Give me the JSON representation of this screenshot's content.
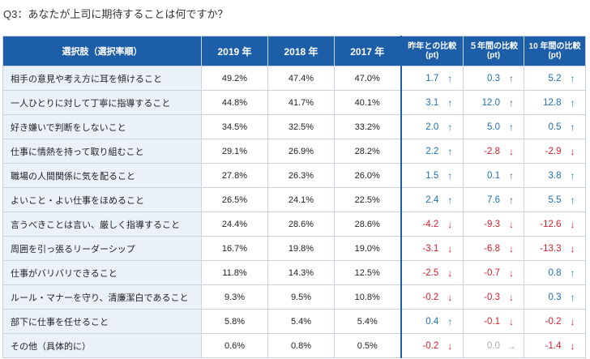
{
  "title": "Q3：あなたが上司に期待することは何ですか？",
  "colors": {
    "header_bg": "#1d5ea8",
    "label_bg": "#eaf1f9",
    "up": "#1e6fb8",
    "down": "#d4202c",
    "flat": "#aaaaaa"
  },
  "headers": {
    "option": "選択肢（選択率順）",
    "y2019": "2019 年",
    "y2018": "2018 年",
    "y2017": "2017 年",
    "cmp_prev": "昨年との比較",
    "cmp_5y": "５年間の比較",
    "cmp_10y": "10 年間の比較",
    "unit": "(pt)"
  },
  "rows": [
    {
      "label": "相手の意見や考え方に耳を傾けること",
      "y2019": "49.2%",
      "y2018": "47.4%",
      "y2017": "47.0%",
      "prev": {
        "v": "1.7",
        "dir": "up",
        "arrow": "↑"
      },
      "five": {
        "v": "0.3",
        "dir": "up",
        "arrow": "↑"
      },
      "ten": {
        "v": "5.2",
        "dir": "up",
        "arrow": "↑"
      }
    },
    {
      "label": "一人ひとりに対して丁寧に指導すること",
      "y2019": "44.8%",
      "y2018": "41.7%",
      "y2017": "40.1%",
      "prev": {
        "v": "3.1",
        "dir": "up",
        "arrow": "↑"
      },
      "five": {
        "v": "12.0",
        "dir": "up",
        "arrow": "↑"
      },
      "ten": {
        "v": "12.8",
        "dir": "up",
        "arrow": "↑"
      }
    },
    {
      "label": "好き嫌いで判断をしないこと",
      "y2019": "34.5%",
      "y2018": "32.5%",
      "y2017": "33.2%",
      "prev": {
        "v": "2.0",
        "dir": "up",
        "arrow": "↑"
      },
      "five": {
        "v": "5.0",
        "dir": "up",
        "arrow": "↑"
      },
      "ten": {
        "v": "0.5",
        "dir": "up",
        "arrow": "↑"
      }
    },
    {
      "label": "仕事に情熱を持って取り組むこと",
      "y2019": "29.1%",
      "y2018": "26.9%",
      "y2017": "28.2%",
      "prev": {
        "v": "2.2",
        "dir": "up",
        "arrow": "↑"
      },
      "five": {
        "v": "-2.8",
        "dir": "down",
        "arrow": "↓"
      },
      "ten": {
        "v": "-2.9",
        "dir": "down",
        "arrow": "↓"
      }
    },
    {
      "label": "職場の人間関係に気を配ること",
      "y2019": "27.8%",
      "y2018": "26.3%",
      "y2017": "26.0%",
      "prev": {
        "v": "1.5",
        "dir": "up",
        "arrow": "↑"
      },
      "five": {
        "v": "0.1",
        "dir": "up",
        "arrow": "↑"
      },
      "ten": {
        "v": "3.8",
        "dir": "up",
        "arrow": "↑"
      }
    },
    {
      "label": "よいこと・よい仕事をほめること",
      "y2019": "26.5%",
      "y2018": "24.1%",
      "y2017": "22.5%",
      "prev": {
        "v": "2.4",
        "dir": "up",
        "arrow": "↑"
      },
      "five": {
        "v": "7.6",
        "dir": "up",
        "arrow": "↑"
      },
      "ten": {
        "v": "5.5",
        "dir": "up",
        "arrow": "↑"
      }
    },
    {
      "label": "言うべきことは言い、厳しく指導すること",
      "y2019": "24.4%",
      "y2018": "28.6%",
      "y2017": "28.6%",
      "prev": {
        "v": "-4.2",
        "dir": "down",
        "arrow": "↓"
      },
      "five": {
        "v": "-9.3",
        "dir": "down",
        "arrow": "↓"
      },
      "ten": {
        "v": "-12.6",
        "dir": "down",
        "arrow": "↓"
      }
    },
    {
      "label": "周囲を引っ張るリーダーシップ",
      "y2019": "16.7%",
      "y2018": "19.8%",
      "y2017": "19.0%",
      "prev": {
        "v": "-3.1",
        "dir": "down",
        "arrow": "↓"
      },
      "five": {
        "v": "-6.8",
        "dir": "down",
        "arrow": "↓"
      },
      "ten": {
        "v": "-13.3",
        "dir": "down",
        "arrow": "↓"
      }
    },
    {
      "label": "仕事がバリバリできること",
      "y2019": "11.8%",
      "y2018": "14.3%",
      "y2017": "12.5%",
      "prev": {
        "v": "-2.5",
        "dir": "down",
        "arrow": "↓"
      },
      "five": {
        "v": "-0.7",
        "dir": "down",
        "arrow": "↓"
      },
      "ten": {
        "v": "0.8",
        "dir": "up",
        "arrow": "↑"
      }
    },
    {
      "label": "ルール・マナーを守り、清廉潔白であること",
      "y2019": "9.3%",
      "y2018": "9.5%",
      "y2017": "10.8%",
      "prev": {
        "v": "-0.2",
        "dir": "down",
        "arrow": "↓"
      },
      "five": {
        "v": "-0.3",
        "dir": "down",
        "arrow": "↓"
      },
      "ten": {
        "v": "0.3",
        "dir": "up",
        "arrow": "↑"
      }
    },
    {
      "label": "部下に仕事を任せること",
      "y2019": "5.8%",
      "y2018": "5.4%",
      "y2017": "5.4%",
      "prev": {
        "v": "0.4",
        "dir": "up",
        "arrow": "↑"
      },
      "five": {
        "v": "-0.1",
        "dir": "down",
        "arrow": "↓"
      },
      "ten": {
        "v": "-0.2",
        "dir": "down",
        "arrow": "↓"
      }
    },
    {
      "label": "その他（具体的に）",
      "y2019": "0.6%",
      "y2018": "0.8%",
      "y2017": "0.5%",
      "prev": {
        "v": "-0.2",
        "dir": "down",
        "arrow": "↓"
      },
      "five": {
        "v": "0.0",
        "dir": "flat",
        "arrow": "→"
      },
      "ten": {
        "v": "-1.4",
        "dir": "down",
        "arrow": "↓"
      }
    }
  ]
}
